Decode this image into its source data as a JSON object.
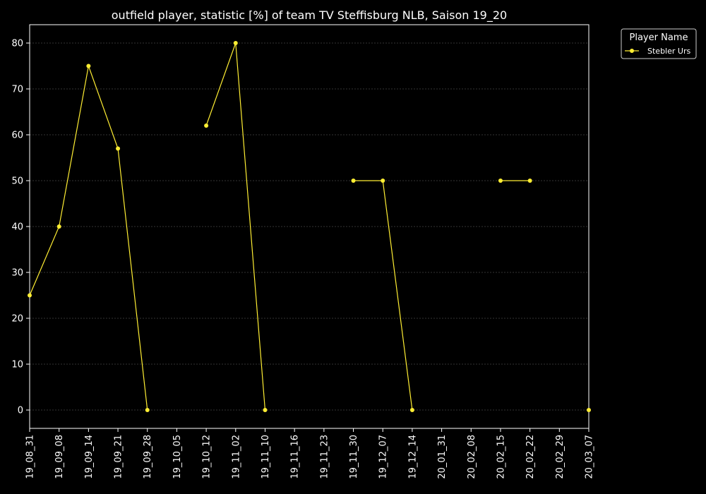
{
  "chart_data": {
    "type": "line",
    "title": "outfield player, statistic [%] of team TV Steffisburg NLB, Saison 19_20",
    "xlabel": "",
    "ylabel": "",
    "categories": [
      "19_08_31",
      "19_09_08",
      "19_09_14",
      "19_09_21",
      "19_09_28",
      "19_10_05",
      "19_10_12",
      "19_11_02",
      "19_11_10",
      "19_11_16",
      "19_11_23",
      "19_11_30",
      "19_12_07",
      "19_12_14",
      "20_01_31",
      "20_02_08",
      "20_02_15",
      "20_02_22",
      "20_02_29",
      "20_03_07"
    ],
    "ylim": [
      -4,
      84
    ],
    "yticks": [
      0,
      10,
      20,
      30,
      40,
      50,
      60,
      70,
      80
    ],
    "grid": true,
    "legend": {
      "title": "Player Name",
      "placement": "upper-right-outside"
    },
    "series": [
      {
        "name": "Stebler Urs",
        "color": "#ffee33",
        "values": [
          25,
          40,
          75,
          57,
          0,
          null,
          62,
          80,
          0,
          null,
          null,
          50,
          50,
          0,
          null,
          null,
          50,
          50,
          null,
          0
        ]
      }
    ]
  },
  "colors": {
    "background": "#000000",
    "axes": "#ffffff",
    "grid": "#666666"
  }
}
